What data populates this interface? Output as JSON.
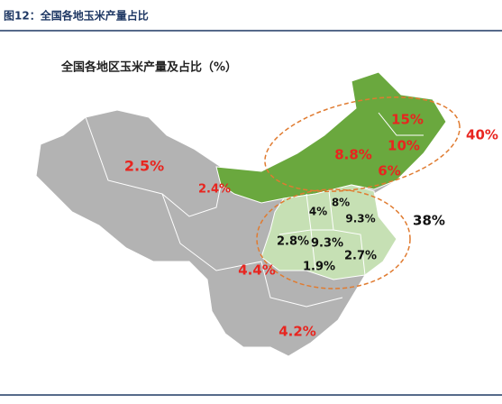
{
  "header": {
    "title": "图12：全国各地玉米产量占比"
  },
  "map": {
    "title": "全国各地区玉米产量及占比（%）",
    "labels": [
      "2.5%",
      "2.4%",
      "4.4%",
      "4.2%",
      "15%",
      "8.8%",
      "10%",
      "6%",
      "40%",
      "8%",
      "4%",
      "9.3%",
      "2.8%",
      "9.3%",
      "1.9%",
      "2.7%",
      "38%"
    ]
  }
}
